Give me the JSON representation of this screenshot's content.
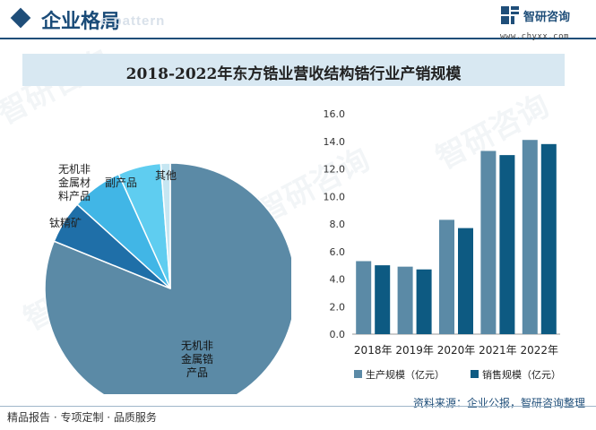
{
  "header": {
    "title": "企业格局",
    "ghost_text": "e pattern"
  },
  "brand": {
    "name": "智研咨询",
    "url": "www.chyxx.com"
  },
  "colors": {
    "pie_main": "#5b8aa6",
    "pie_dark": "#1f6fa8",
    "pie_light": "#41b6e6",
    "pie_cyan": "#5fcdf0",
    "pie_pale": "#c6e6f2",
    "production": "#5b8aa6",
    "sales": "#0d5a82",
    "title_bg": "#d8e8f2"
  },
  "chart_title": "2018-2022年东方锆业营收结构锆行业产销规模",
  "chart_data": [
    {
      "type": "pie",
      "slices": [
        {
          "label": "无机非金属锆产品",
          "value": 80.5
        },
        {
          "label": "钛精矿",
          "value": 5.5
        },
        {
          "label": "无机非金属材料产品",
          "value": 6.5
        },
        {
          "label": "副产品",
          "value": 5.5
        },
        {
          "label": "其他",
          "value": 1.2
        }
      ]
    },
    {
      "type": "bar",
      "categories": [
        "2018年",
        "2019年",
        "2020年",
        "2021年",
        "2022年"
      ],
      "series": [
        {
          "name": "生产规模（亿元）",
          "values": [
            5.3,
            4.9,
            8.3,
            13.3,
            14.1
          ]
        },
        {
          "name": "销售规模（亿元）",
          "values": [
            5.0,
            4.7,
            7.7,
            13.0,
            13.8
          ]
        }
      ],
      "ylim": [
        0,
        16
      ],
      "yticks": [
        "0.0",
        "2.0",
        "4.0",
        "6.0",
        "8.0",
        "10.0",
        "12.0",
        "14.0",
        "16.0"
      ],
      "legend_position": "bottom"
    }
  ],
  "footer": {
    "left": "精品报告 · 专项定制 · 品质服务",
    "source": "资料来源：企业公报，智研咨询整理"
  }
}
